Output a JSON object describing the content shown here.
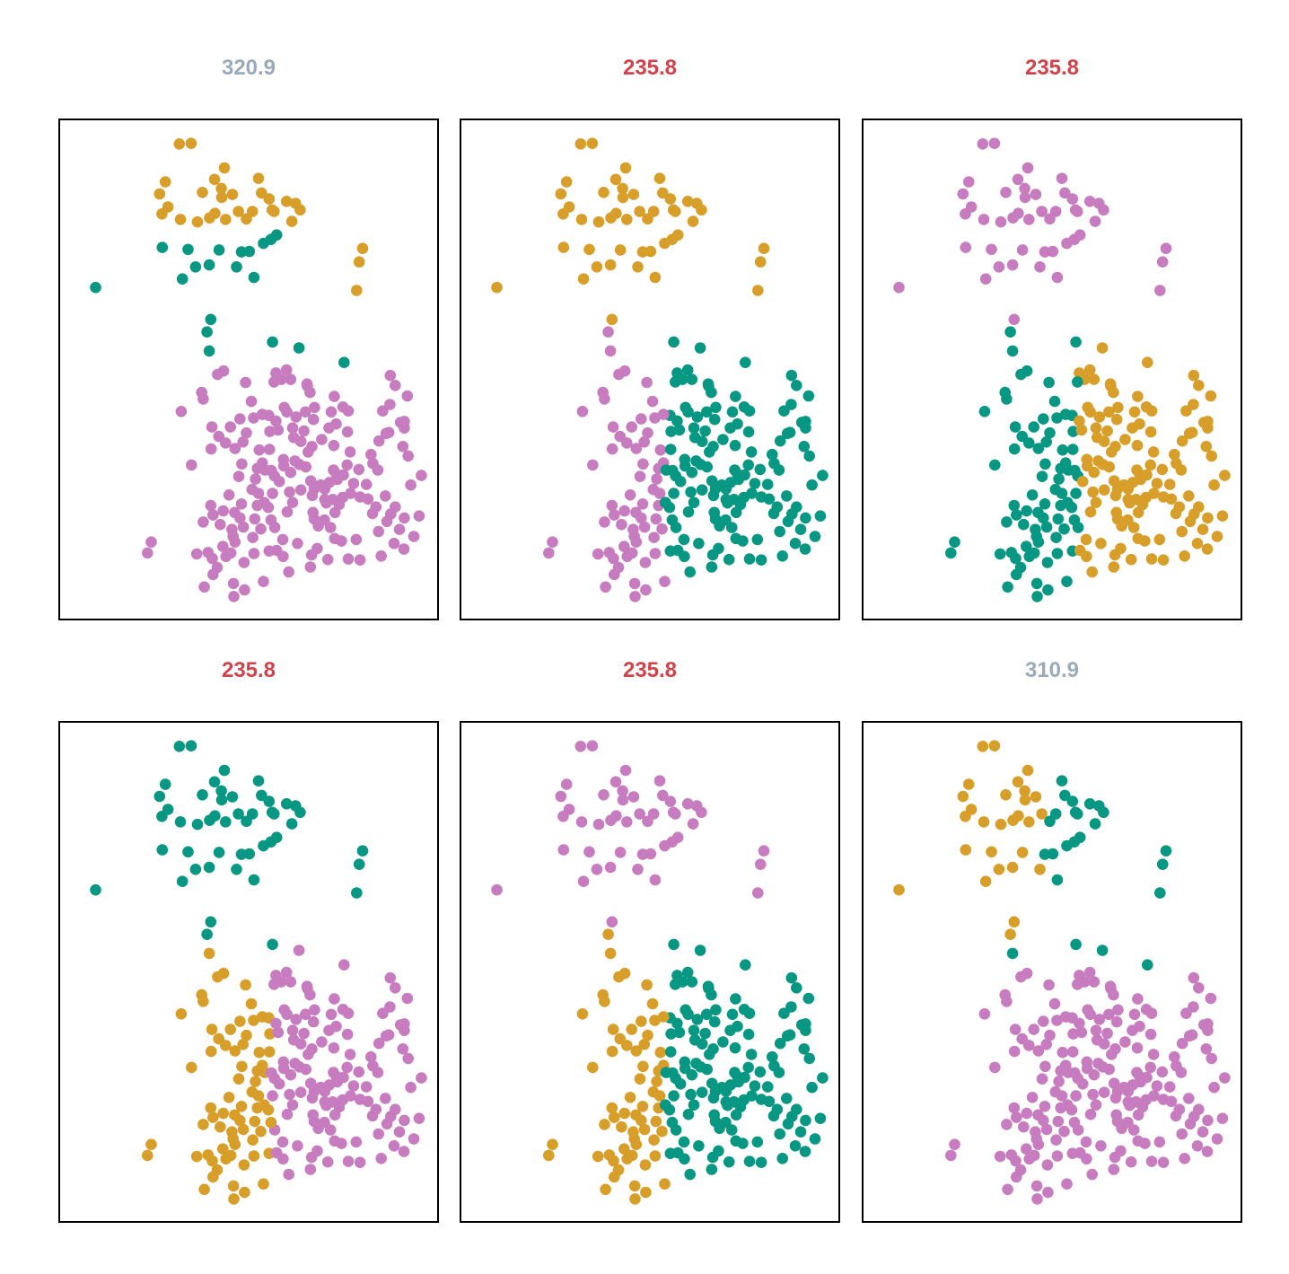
{
  "colors": {
    "purple": "#c77cbf",
    "orange": "#d89e2a",
    "teal": "#079782",
    "title_best": "#d0434b",
    "title_other": "#9aaabb"
  },
  "chart_data": {
    "type": "scatter",
    "grid": false,
    "axes_visible": false,
    "note_xy": "points estimated in panel-relative units (x 0-100 left to right, y 0-100 top to bottom); identical point cloud in every panel, colors give the cluster assignment",
    "points": [
      [
        31.7,
        4.9
      ],
      [
        34.8,
        4.8
      ],
      [
        28.0,
        12.5
      ],
      [
        26.5,
        14.9
      ],
      [
        43.6,
        9.7
      ],
      [
        41.0,
        12.0
      ],
      [
        52.6,
        11.8
      ],
      [
        28.7,
        17.5
      ],
      [
        27.1,
        18.9
      ],
      [
        37.8,
        14.6
      ],
      [
        42.8,
        13.8
      ],
      [
        53.4,
        14.7
      ],
      [
        55.4,
        15.9
      ],
      [
        60.0,
        16.4
      ],
      [
        42.9,
        15.6
      ],
      [
        45.7,
        15.0
      ],
      [
        62.4,
        16.8
      ],
      [
        56.2,
        18.1
      ],
      [
        41.1,
        18.8
      ],
      [
        47.3,
        18.4
      ],
      [
        51.0,
        18.4
      ],
      [
        56.7,
        18.4
      ],
      [
        63.6,
        18.1
      ],
      [
        32.0,
        20.0
      ],
      [
        36.5,
        20.5
      ],
      [
        43.9,
        20.0
      ],
      [
        39.7,
        19.7
      ],
      [
        49.4,
        19.9
      ],
      [
        61.4,
        20.4
      ],
      [
        57.4,
        23.1
      ],
      [
        55.9,
        24.0
      ],
      [
        53.9,
        24.8
      ],
      [
        27.2,
        25.6
      ],
      [
        34.0,
        26.0
      ],
      [
        42.2,
        26.1
      ],
      [
        48.1,
        26.5
      ],
      [
        50.2,
        26.4
      ],
      [
        36.0,
        29.5
      ],
      [
        39.6,
        29.1
      ],
      [
        46.8,
        29.5
      ],
      [
        32.5,
        31.9
      ],
      [
        51.4,
        31.6
      ],
      [
        9.6,
        33.6
      ],
      [
        80.1,
        25.8
      ],
      [
        79.2,
        28.5
      ],
      [
        78.5,
        34.2
      ],
      [
        40.0,
        40.0
      ],
      [
        39.6,
        46.3
      ],
      [
        56.3,
        44.5
      ],
      [
        63.3,
        45.7
      ],
      [
        75.2,
        48.6
      ],
      [
        57.2,
        50.7
      ],
      [
        60.0,
        50.1
      ],
      [
        58.6,
        52.0
      ],
      [
        61.1,
        52.0
      ],
      [
        65.4,
        52.9
      ],
      [
        66.2,
        54.6
      ],
      [
        38.0,
        55.9
      ],
      [
        88.7,
        53.2
      ],
      [
        32.2,
        58.4
      ],
      [
        47.7,
        59.9
      ],
      [
        51.3,
        59.7
      ],
      [
        55.3,
        59.2
      ],
      [
        57.2,
        60.3
      ],
      [
        67.4,
        57.6
      ],
      [
        40.3,
        61.5
      ],
      [
        45.2,
        61.5
      ],
      [
        73.1,
        60.9
      ],
      [
        90.1,
        60.6
      ],
      [
        42.1,
        63.4
      ],
      [
        61.9,
        63.6
      ],
      [
        64.6,
        62.3
      ],
      [
        69.3,
        64.0
      ],
      [
        71.2,
        61.7
      ],
      [
        76.1,
        62.5
      ],
      [
        72.5,
        65.2
      ],
      [
        87.0,
        62.6
      ],
      [
        52.8,
        66.1
      ],
      [
        55.5,
        66.0
      ],
      [
        65.7,
        66.5
      ],
      [
        66.7,
        65.4
      ],
      [
        76.8,
        66.5
      ],
      [
        59.2,
        68.0
      ],
      [
        53.6,
        68.7
      ],
      [
        48.2,
        68.9
      ],
      [
        76.0,
        69.1
      ],
      [
        82.8,
        68.8
      ],
      [
        34.9,
        69.1
      ],
      [
        52.3,
        69.8
      ],
      [
        54.3,
        70.1
      ],
      [
        47.4,
        71.4
      ],
      [
        51.8,
        71.9
      ],
      [
        56.8,
        71.3
      ],
      [
        73.1,
        70.9
      ],
      [
        59.3,
        69.3
      ],
      [
        63.4,
        69.0
      ],
      [
        65.1,
        69.5
      ],
      [
        79.1,
        70.0
      ],
      [
        84.1,
        70.1
      ],
      [
        73.4,
        72.0
      ],
      [
        71.3,
        72.6
      ],
      [
        66.4,
        72.3
      ],
      [
        69.0,
        73.1
      ],
      [
        81.1,
        73.0
      ],
      [
        67.3,
        73.9
      ],
      [
        63.8,
        74.1
      ],
      [
        70.1,
        73.9
      ],
      [
        56.3,
        74.8
      ],
      [
        66.8,
        75.2
      ],
      [
        70.1,
        76.0
      ],
      [
        72.2,
        76.0
      ],
      [
        81.5,
        75.9
      ],
      [
        86.1,
        75.3
      ],
      [
        76.9,
        74.8
      ],
      [
        74.8,
        75.6
      ],
      [
        79.4,
        75.5
      ],
      [
        52.6,
        74.8
      ],
      [
        52.3,
        77.2
      ],
      [
        55.2,
        77.6
      ],
      [
        54.1,
        76.6
      ],
      [
        61.6,
        76.6
      ],
      [
        70.5,
        76.7
      ],
      [
        73.9,
        77.0
      ],
      [
        67.0,
        78.6
      ],
      [
        72.8,
        78.6
      ],
      [
        82.7,
        78.8
      ],
      [
        83.6,
        77.5
      ],
      [
        88.7,
        77.5
      ],
      [
        87.5,
        78.9
      ],
      [
        40.0,
        77.2
      ],
      [
        40.6,
        79.1
      ],
      [
        43.3,
        78.3
      ],
      [
        46.3,
        78.6
      ],
      [
        48.1,
        76.9
      ],
      [
        47.7,
        79.7
      ],
      [
        51.6,
        79.9
      ],
      [
        38.0,
        80.5
      ],
      [
        42.5,
        81.0
      ],
      [
        48.6,
        81.5
      ],
      [
        45.6,
        82.0
      ],
      [
        45.9,
        83.4
      ],
      [
        56.9,
        81.6
      ],
      [
        68.4,
        81.3
      ],
      [
        71.6,
        81.6
      ],
      [
        72.7,
        83.8
      ],
      [
        70.0,
        80.1
      ],
      [
        67.3,
        79.9
      ],
      [
        43.2,
        85.4
      ],
      [
        46.4,
        84.5
      ],
      [
        24.3,
        84.5
      ],
      [
        23.3,
        86.7
      ],
      [
        39.3,
        86.6
      ],
      [
        44.0,
        87.4
      ],
      [
        41.7,
        89.6
      ],
      [
        48.8,
        88.6
      ],
      [
        51.4,
        86.8
      ],
      [
        55.4,
        86.3
      ],
      [
        57.4,
        86.2
      ],
      [
        59.1,
        87.4
      ],
      [
        60.6,
        90.5
      ],
      [
        66.3,
        89.5
      ],
      [
        66.6,
        87.1
      ],
      [
        70.9,
        88.0
      ],
      [
        76.3,
        87.9
      ],
      [
        79.4,
        88.1
      ],
      [
        85.0,
        87.3
      ],
      [
        91.0,
        85.9
      ],
      [
        95.0,
        79.3
      ],
      [
        95.6,
        71.2
      ],
      [
        92.8,
        73.1
      ],
      [
        90.7,
        65.4
      ],
      [
        91.1,
        60.4
      ],
      [
        91.9,
        55.3
      ],
      [
        87.3,
        57.0
      ],
      [
        46.0,
        92.8
      ],
      [
        40.6,
        91.0
      ],
      [
        38.3,
        93.5
      ],
      [
        40.4,
        87.8
      ],
      [
        36.3,
        86.9
      ],
      [
        53.9,
        92.4
      ],
      [
        48.9,
        94.1
      ],
      [
        46.1,
        95.4
      ],
      [
        45.3,
        86.7
      ],
      [
        44.8,
        75.1
      ],
      [
        56.7,
        52.5
      ],
      [
        91.1,
        79.7
      ],
      [
        39.0,
        42.5
      ],
      [
        87.4,
        51.2
      ],
      [
        37.6,
        54.6
      ],
      [
        41.8,
        51.0
      ],
      [
        43.4,
        50.3
      ],
      [
        60.1,
        58.5
      ],
      [
        62.5,
        59.5
      ],
      [
        65.5,
        53.3
      ],
      [
        65.0,
        58.5
      ],
      [
        50.7,
        56.4
      ],
      [
        53.6,
        59.0
      ],
      [
        49.2,
        52.6
      ],
      [
        59.4,
        57.6
      ],
      [
        40.1,
        65.9
      ],
      [
        43.9,
        64.7
      ],
      [
        46.4,
        65.8
      ],
      [
        48.5,
        64.5
      ],
      [
        49.4,
        62.7
      ],
      [
        55.6,
        62.4
      ],
      [
        57.8,
        62.1
      ],
      [
        61.6,
        61.7
      ],
      [
        63.8,
        64.4
      ],
      [
        61.1,
        70.6
      ],
      [
        62.2,
        68.3
      ],
      [
        72.4,
        70.1
      ],
      [
        75.0,
        71.1
      ],
      [
        77.7,
        72.8
      ],
      [
        82.3,
        67.0
      ],
      [
        84.4,
        64.3
      ],
      [
        86.3,
        62.8
      ],
      [
        85.4,
        58.3
      ],
      [
        91.1,
        61.7
      ],
      [
        92.1,
        67.3
      ],
      [
        67.1,
        60.0
      ],
      [
        71.8,
        58.5
      ],
      [
        72.6,
        55.4
      ],
      [
        74.9,
        57.5
      ],
      [
        76.3,
        58.3
      ],
      [
        50.9,
        74.0
      ],
      [
        56.0,
        70.2
      ],
      [
        58.1,
        72.4
      ],
      [
        60.8,
        74.5
      ],
      [
        60.2,
        78.5
      ],
      [
        55.9,
        80.1
      ],
      [
        53.2,
        81.9
      ],
      [
        51.1,
        83.6
      ],
      [
        59.0,
        84.0
      ],
      [
        62.9,
        84.8
      ],
      [
        68.1,
        85.8
      ],
      [
        74.5,
        84.3
      ],
      [
        78.4,
        84.0
      ],
      [
        84.3,
        82.4
      ],
      [
        86.5,
        80.4
      ],
      [
        89.8,
        82.0
      ],
      [
        88.4,
        84.8
      ],
      [
        93.6,
        83.4
      ]
    ],
    "panels": [
      {
        "title": "320.9",
        "best": false,
        "assignment": "orange / teal / purple"
      },
      {
        "title": "235.8",
        "best": true,
        "assignment": "orange / purple / teal"
      },
      {
        "title": "235.8",
        "best": true,
        "assignment": "purple / teal / orange"
      },
      {
        "title": "235.8",
        "best": true,
        "assignment": "teal / orange / purple"
      },
      {
        "title": "235.8",
        "best": true,
        "assignment": "purple / orange / teal"
      },
      {
        "title": "310.9",
        "best": false,
        "assignment": "orange+teal / purple"
      }
    ]
  }
}
